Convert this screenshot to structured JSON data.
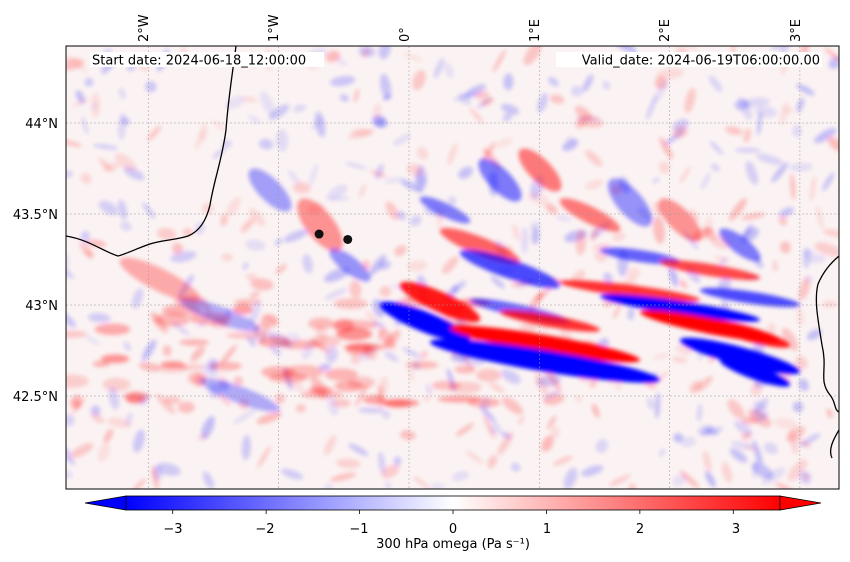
{
  "header": {
    "start_date": "Start date: 2024-06-18_12:00:00",
    "valid_date": "Valid_date: 2024-06-19T06:00:00.00"
  },
  "map": {
    "lon_ticks": [
      "2°W",
      "1°W",
      "0°",
      "1°E",
      "2°E",
      "3°E"
    ],
    "lat_ticks": [
      "44°N",
      "43.5°N",
      "43°N",
      "42.5°N"
    ],
    "field_colors": {
      "negative": "#0000ff",
      "zero": "#ffffff",
      "positive": "#ff0000"
    },
    "coastline_color": "#000000",
    "gridlines": "dotted",
    "markers": [
      {
        "name": "point-1",
        "lon": -0.69,
        "lat": 43.39
      },
      {
        "name": "point-2",
        "lon": -0.47,
        "lat": 43.36
      }
    ]
  },
  "colorbar": {
    "label": "300 hPa omega (Pa s⁻¹)",
    "ticks": [
      "−3",
      "−2",
      "−1",
      "0",
      "1",
      "2",
      "3"
    ],
    "range": [
      -3.5,
      3.5
    ],
    "extend": "both"
  }
}
